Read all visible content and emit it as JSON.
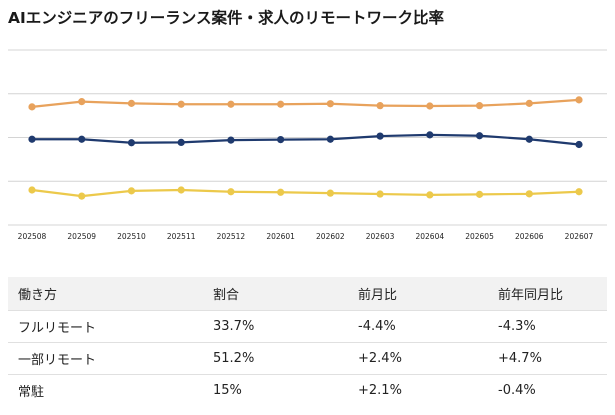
{
  "title": "AIエンジニアのフリーランス案件・求人のリモートワーク比率",
  "chart_data": {
    "type": "line",
    "x": [
      "202508",
      "202509",
      "202510",
      "202511",
      "202512",
      "202601",
      "202602",
      "202603",
      "202604",
      "202605",
      "202606",
      "202607"
    ],
    "series": [
      {
        "color": "#e8a25c",
        "values": [
          67.5,
          70.5,
          69.5,
          69.0,
          69.0,
          69.0,
          69.3,
          68.2,
          68.0,
          68.2,
          69.5,
          71.5
        ]
      },
      {
        "color": "#1f3a6e",
        "values": [
          49.0,
          49.0,
          47.0,
          47.2,
          48.5,
          48.8,
          49.0,
          50.8,
          51.5,
          51.0,
          49.0,
          46.0
        ]
      },
      {
        "color": "#ecc94b",
        "values": [
          20.0,
          16.5,
          19.5,
          20.0,
          19.0,
          18.7,
          18.2,
          17.7,
          17.2,
          17.5,
          17.8,
          19.0
        ]
      }
    ],
    "ylim": [
      0,
      100
    ],
    "grid": true
  },
  "table": {
    "headers": [
      "働き方",
      "割合",
      "前月比",
      "前年同月比"
    ],
    "rows": [
      [
        "フルリモート",
        "33.7%",
        "-4.4%",
        "-4.3%"
      ],
      [
        "一部リモート",
        "51.2%",
        "+2.4%",
        "+4.7%"
      ],
      [
        "常駐",
        "15%",
        "+2.1%",
        "-0.4%"
      ]
    ]
  }
}
